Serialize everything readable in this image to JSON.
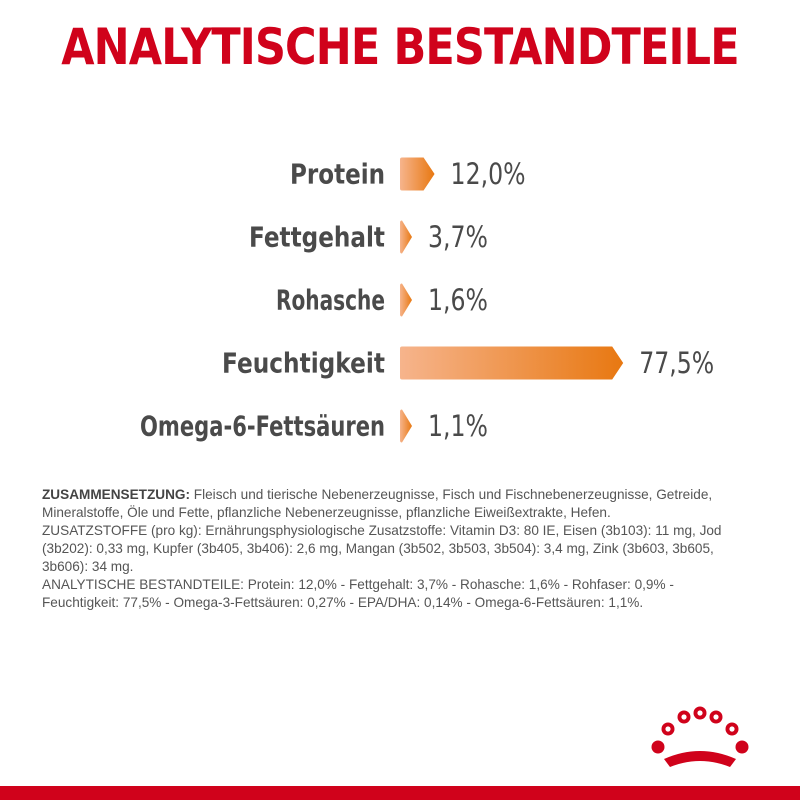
{
  "title": "ANALYTISCHE BESTANDTEILE",
  "chart_data": {
    "type": "bar",
    "categories": [
      "Protein",
      "Fettgehalt",
      "Rohasche",
      "Feuchtigkeit",
      "Omega-6-Fettsäuren"
    ],
    "values": [
      12.0,
      3.7,
      1.6,
      77.5,
      1.1
    ],
    "value_labels": [
      "12,0%",
      "3,7%",
      "1,6%",
      "77,5%",
      "1,1%"
    ],
    "unit": "%",
    "bar_color_start": "#f6b48c",
    "bar_color_end": "#e87811",
    "label_color": "#4a4a4a"
  },
  "composition": {
    "label": "ZUSAMMENSETZUNG:",
    "text": "Fleisch und tierische Nebenerzeugnisse, Fisch und Fischnebenerzeugnisse, Getreide, Mineralstoffe, Öle und Fette, pflanzliche Nebenerzeugnisse, pflanzliche Eiweißextrakte, Hefen.",
    "additives": "ZUSATZSTOFFE (pro kg): Ernährungsphysiologische Zusatzstoffe: Vitamin D3: 80 IE, Eisen (3b103): 11 mg, Jod (3b202): 0,33 mg, Kupfer (3b405, 3b406): 2,6 mg, Mangan (3b502, 3b503, 3b504): 3,4 mg, Zink (3b603, 3b605, 3b606): 34 mg.",
    "analytic": "ANALYTISCHE BESTANDTEILE: Protein: 12,0% - Fettgehalt: 3,7% - Rohasche: 1,6% - Rohfaser: 0,9% - Feuchtigkeit: 77,5% - Omega-3-Fettsäuren: 0,27% - EPA/DHA: 0,14% - Omega-6-Fettsäuren: 1,1%."
  },
  "brand_color": "#d0021b"
}
